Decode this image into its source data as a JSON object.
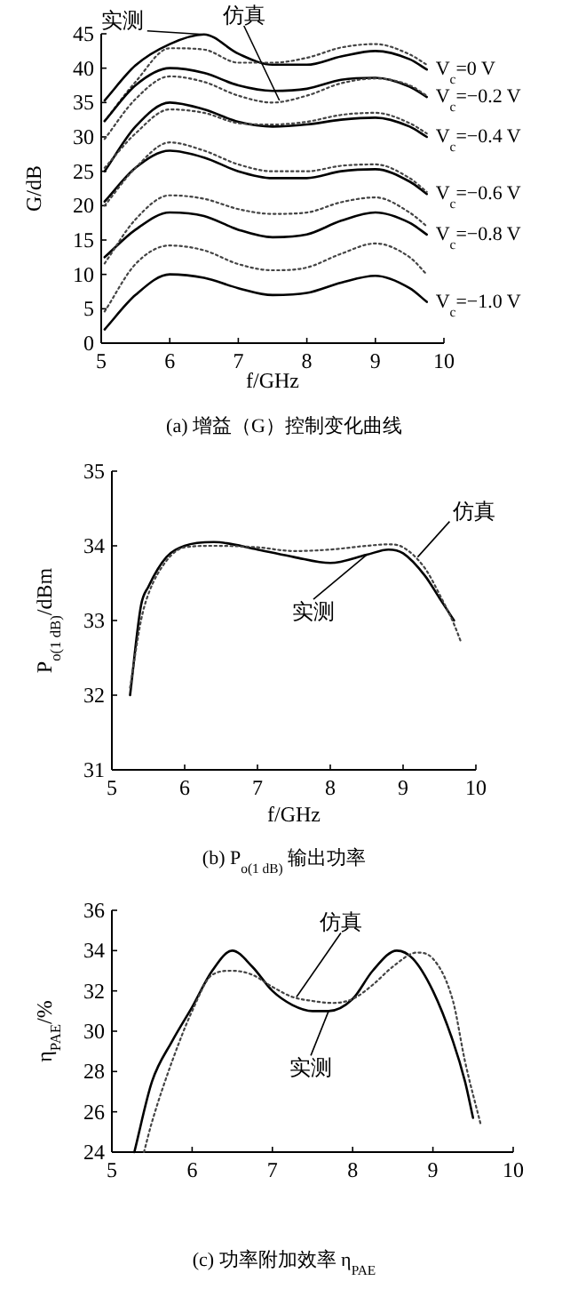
{
  "chart_data": [
    {
      "type": "line",
      "title": "(a) 增益（G）控制变化曲线",
      "xlabel": "f/GHz",
      "ylabel": "G/dB",
      "xlim": [
        5,
        10
      ],
      "ylim": [
        0,
        45
      ],
      "xticks": [
        5,
        6,
        7,
        8,
        9,
        10
      ],
      "yticks": [
        0,
        5,
        10,
        15,
        20,
        25,
        30,
        35,
        40,
        45
      ],
      "grid": false,
      "annotations": [
        {
          "text": "实测",
          "x": 6.5,
          "y": 44.9
        },
        {
          "text": "仿真",
          "x": 7.6,
          "y": 35.3
        }
      ],
      "series": [
        {
          "name": "V$_{c}$=0 V",
          "color": "#000000",
          "line_style": "solid",
          "x": [
            5.05,
            5.5,
            6,
            6.5,
            7,
            7.5,
            8,
            8.5,
            9,
            9.5,
            9.75
          ],
          "values": [
            35.3,
            40.4,
            43.5,
            44.9,
            42.1,
            40.5,
            40.5,
            41.7,
            42.5,
            41.3,
            39.8
          ]
        },
        {
          "color": "#444444",
          "line_style": "dotted",
          "x": [
            5.05,
            5.5,
            6,
            6.5,
            7,
            7.5,
            8,
            8.5,
            9,
            9.5,
            9.75
          ],
          "values": [
            32.3,
            38,
            42.9,
            42.7,
            40.8,
            40.8,
            41.5,
            43,
            43.5,
            42,
            40.5
          ]
        },
        {
          "name": "V$_{c}$=−0.2 V",
          "color": "#000000",
          "line_style": "solid",
          "x": [
            5.05,
            5.5,
            6,
            6.5,
            7,
            7.5,
            8,
            8.5,
            9,
            9.5,
            9.75
          ],
          "values": [
            32.3,
            37.5,
            40,
            39.3,
            37.5,
            36.7,
            37,
            38.3,
            38.6,
            37.3,
            35.8
          ]
        },
        {
          "color": "#444444",
          "line_style": "dotted",
          "x": [
            5.05,
            5.5,
            6,
            6.5,
            7,
            7.5,
            8,
            8.5,
            9,
            9.5,
            9.75
          ],
          "values": [
            29.7,
            35.5,
            38.8,
            38,
            36,
            35,
            36,
            37.8,
            38.5,
            37.5,
            36
          ]
        },
        {
          "name": "V$_{c}$=−0.4 V",
          "color": "#000000",
          "line_style": "solid",
          "x": [
            5.05,
            5.5,
            6,
            6.5,
            7,
            7.5,
            8,
            8.5,
            9,
            9.5,
            9.75
          ],
          "values": [
            25,
            31.5,
            35,
            34,
            32.2,
            31.5,
            31.8,
            32.5,
            32.8,
            31.5,
            30
          ]
        },
        {
          "color": "#444444",
          "line_style": "dotted",
          "x": [
            5.05,
            5.5,
            6,
            6.5,
            7,
            7.5,
            8,
            8.5,
            9,
            9.5,
            9.75
          ],
          "values": [
            25.5,
            30.5,
            34,
            33.5,
            32,
            31.8,
            32.2,
            33.2,
            33.5,
            32,
            30.5
          ]
        },
        {
          "name": "V$_{c}$=−0.6 V",
          "color": "#000000",
          "line_style": "solid",
          "x": [
            5.05,
            5.5,
            6,
            6.5,
            7,
            7.5,
            8,
            8.5,
            9,
            9.5,
            9.75
          ],
          "values": [
            20.6,
            25.5,
            28,
            27,
            25,
            24,
            24,
            25,
            25.3,
            23.5,
            21.7
          ]
        },
        {
          "color": "#444444",
          "line_style": "dotted",
          "x": [
            5.05,
            5.5,
            6,
            6.5,
            7,
            7.5,
            8,
            8.5,
            9,
            9.5,
            9.75
          ],
          "values": [
            20,
            25.5,
            29.2,
            28,
            26,
            25,
            25,
            25.8,
            26,
            24,
            22
          ]
        },
        {
          "name": "V$_{c}$=−0.8 V",
          "color": "#000000",
          "line_style": "solid",
          "x": [
            5.05,
            5.5,
            6,
            6.5,
            7,
            7.5,
            8,
            8.5,
            9,
            9.5,
            9.75
          ],
          "values": [
            12.5,
            16.5,
            19,
            18.5,
            16.5,
            15.4,
            15.8,
            17.8,
            19,
            17.5,
            15.8
          ]
        },
        {
          "color": "#444444",
          "line_style": "dotted",
          "x": [
            5.05,
            5.5,
            6,
            6.5,
            7,
            7.5,
            8,
            8.5,
            9,
            9.5,
            9.75
          ],
          "values": [
            11.6,
            18,
            21.5,
            21,
            19.5,
            18.8,
            19,
            20.5,
            21.2,
            19,
            17
          ]
        },
        {
          "name": "V$_{c}$=−1.0 V",
          "color": "#000000",
          "line_style": "solid",
          "x": [
            5.05,
            5.5,
            6,
            6.5,
            7,
            7.5,
            8,
            8.5,
            9,
            9.5,
            9.75
          ],
          "values": [
            2,
            7,
            10,
            9.5,
            8,
            7,
            7.3,
            8.8,
            9.8,
            8,
            6
          ]
        },
        {
          "color": "#444444",
          "line_style": "dotted",
          "x": [
            5.05,
            5.5,
            6,
            6.5,
            7,
            7.5,
            8,
            8.5,
            9,
            9.5,
            9.75
          ],
          "values": [
            4.6,
            11.5,
            14.2,
            13.5,
            11.5,
            10.6,
            11,
            13,
            14.5,
            12.5,
            10
          ]
        }
      ]
    },
    {
      "type": "line",
      "title": "(b) P$_{o(1 dB)}$ 输出功率",
      "xlabel": "f/GHz",
      "ylabel": "P$_{o(1 dB)}$/dBm",
      "xlim": [
        5,
        10
      ],
      "ylim": [
        31,
        35
      ],
      "xticks": [
        5,
        6,
        7,
        8,
        9,
        10
      ],
      "yticks": [
        31,
        32,
        33,
        34,
        35
      ],
      "grid": false,
      "annotations": [
        {
          "text": "仿真",
          "x": 9.2,
          "y": 33.85
        },
        {
          "text": "实测",
          "x": 8.5,
          "y": 33.88
        }
      ],
      "series": [
        {
          "color": "#000000",
          "line_style": "solid",
          "x": [
            5.25,
            5.4,
            5.5,
            5.75,
            6,
            6.4,
            7,
            7.5,
            8,
            8.5,
            8.8,
            9,
            9.3,
            9.5,
            9.7
          ],
          "values": [
            32,
            33.2,
            33.45,
            33.85,
            34,
            34.05,
            33.95,
            33.85,
            33.77,
            33.88,
            33.95,
            33.9,
            33.6,
            33.3,
            33
          ]
        },
        {
          "color": "#444444",
          "line_style": "dotted",
          "x": [
            5.25,
            5.4,
            5.5,
            5.75,
            6,
            6.4,
            7,
            7.5,
            8,
            8.5,
            8.8,
            9,
            9.3,
            9.5,
            9.7,
            9.8
          ],
          "values": [
            32.1,
            33,
            33.35,
            33.8,
            33.98,
            34,
            33.98,
            33.93,
            33.95,
            34,
            34.02,
            33.98,
            33.7,
            33.35,
            32.95,
            32.7
          ]
        }
      ]
    },
    {
      "type": "line",
      "title": "(c) 功率附加效率 η$_{PAE}$",
      "ylabel": "η$_{PAE}$/%",
      "xlim": [
        5,
        10
      ],
      "ylim": [
        24,
        36
      ],
      "xticks": [
        5,
        6,
        7,
        8,
        9,
        10
      ],
      "yticks": [
        24,
        26,
        28,
        30,
        32,
        34,
        36
      ],
      "grid": false,
      "annotations": [
        {
          "text": "仿真",
          "x": 7.3,
          "y": 31.7
        },
        {
          "text": "实测",
          "x": 7.7,
          "y": 31.0
        }
      ],
      "series": [
        {
          "color": "#000000",
          "line_style": "solid",
          "x": [
            5.28,
            5.5,
            5.75,
            6,
            6.25,
            6.5,
            6.75,
            7,
            7.25,
            7.5,
            7.7,
            8,
            8.25,
            8.55,
            8.75,
            9,
            9.25,
            9.4,
            9.5
          ],
          "values": [
            24,
            27.5,
            29.5,
            31.2,
            33,
            34,
            33.2,
            32,
            31.3,
            31,
            31.0,
            31.6,
            33,
            34,
            33.6,
            32,
            29.5,
            27.5,
            25.7
          ]
        },
        {
          "color": "#444444",
          "line_style": "dotted",
          "x": [
            5.4,
            5.5,
            5.75,
            6,
            6.25,
            6.5,
            6.75,
            7,
            7.25,
            7.5,
            7.75,
            8,
            8.25,
            8.5,
            8.8,
            9,
            9.25,
            9.4,
            9.6
          ],
          "values": [
            24,
            25.5,
            28.5,
            31,
            32.8,
            33,
            32.8,
            32.2,
            31.7,
            31.5,
            31.4,
            31.6,
            32.3,
            33.2,
            33.9,
            33.6,
            31.5,
            28.5,
            25.3
          ]
        }
      ]
    }
  ]
}
